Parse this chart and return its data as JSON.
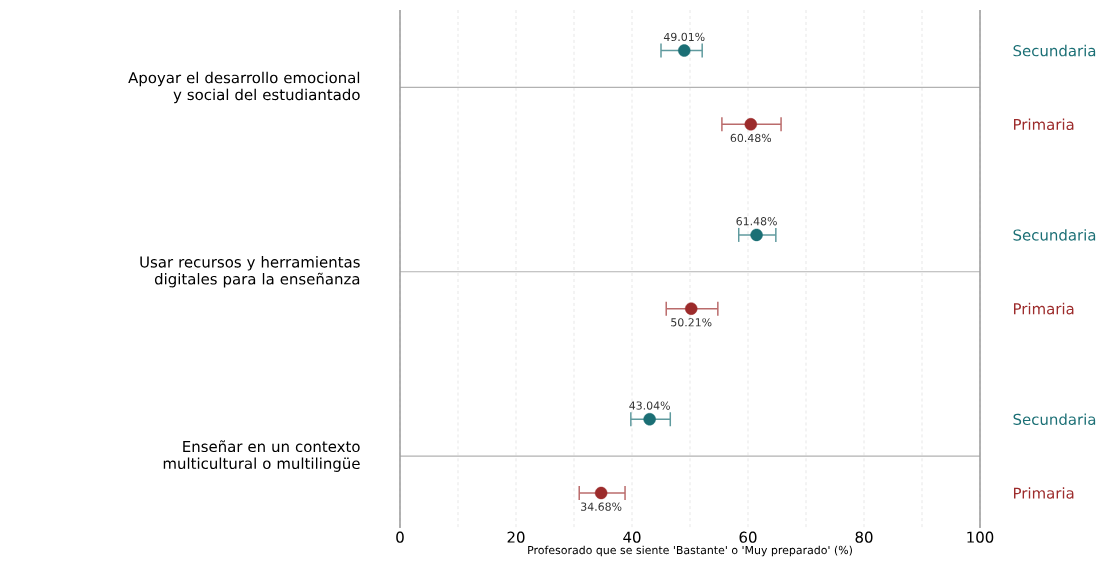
{
  "chart_data": {
    "type": "scatter",
    "orientation": "horizontal",
    "xlabel": "Profesorado que se siente 'Bastante' o 'Muy preparado' (%)",
    "categories": [
      "Apoyar el desarrollo emocional y social del estudiantado",
      "Usar recursos y herramientas digitales para la enseñanza",
      "Enseñar en un contexto multicultural o multilingüe"
    ],
    "series": [
      {
        "name": "Secundaria",
        "color": "#1b6f75",
        "values": [
          49.01,
          61.48,
          43.04
        ],
        "errors": [
          [
            45.0,
            52.1
          ],
          [
            58.4,
            64.8
          ],
          [
            39.8,
            46.6
          ]
        ],
        "value_labels": [
          "49.01%",
          "61.48%",
          "43.04%"
        ]
      },
      {
        "name": "Primaria",
        "color": "#9c2b2b",
        "values": [
          60.48,
          50.21,
          34.68
        ],
        "errors": [
          [
            55.5,
            65.7
          ],
          [
            45.9,
            54.8
          ],
          [
            30.9,
            38.8
          ]
        ],
        "value_labels": [
          "60.48%",
          "50.21%",
          "34.68%"
        ]
      }
    ],
    "xlim": [
      0,
      100
    ],
    "xticks": [
      0,
      {
        "value": 10,
        "label": null
      },
      20,
      {
        "value": 30,
        "label": null
      },
      40,
      {
        "value": 50,
        "label": null
      },
      60,
      {
        "value": 70,
        "label": null
      },
      80,
      {
        "value": 90,
        "label": null
      },
      100
    ],
    "grid": true,
    "marker": "circle",
    "ref_lines": [
      {
        "axis": "x",
        "value": 0,
        "color": "#999999"
      },
      {
        "axis": "x",
        "value": 100,
        "color": "#999999"
      }
    ]
  }
}
